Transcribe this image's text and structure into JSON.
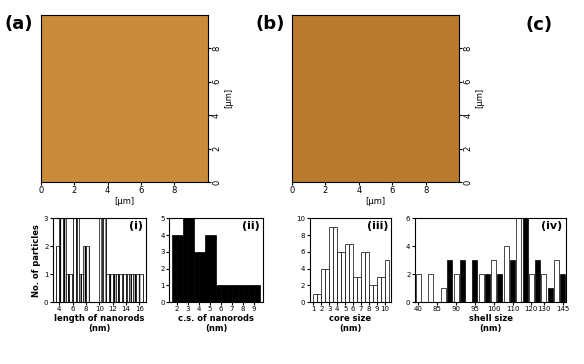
{
  "chart_data": [
    {
      "type": "image",
      "title": "(a)",
      "color": "#c98b3a",
      "xlabel": "[µm]",
      "ylabel": "[µm]",
      "xlim": [
        0,
        10
      ],
      "ylim": [
        0,
        10
      ],
      "xticks": [
        0,
        2,
        4,
        6,
        8
      ],
      "yticks": [
        0,
        2,
        4,
        6,
        8
      ]
    },
    {
      "type": "image",
      "title": "(b)",
      "color": "#b97a2e",
      "xlabel": "[µm]",
      "ylabel": "[µm]",
      "xlim": [
        0,
        10
      ],
      "ylim": [
        0,
        10
      ],
      "xticks": [
        0,
        2,
        4,
        6,
        8
      ],
      "yticks": [
        0,
        2,
        4,
        6,
        8
      ]
    },
    {
      "type": "text",
      "title": "(c)"
    },
    {
      "type": "histogram",
      "annotation": "(i)",
      "xlabel": "length of nanorods\n(nm)",
      "ylabel": "No. of particles",
      "color": "#ffffff",
      "bins": [
        3.5,
        4,
        4.5,
        5,
        5.5,
        6,
        6.5,
        7,
        7.5,
        8,
        8.5,
        9,
        9.5,
        10,
        10.5,
        11,
        11.5,
        12,
        12.5,
        13,
        13.5,
        14,
        14.5,
        15,
        15.5,
        16,
        16.5
      ],
      "counts": [
        2,
        3,
        3,
        1,
        1,
        3,
        3,
        1,
        2,
        2,
        0,
        0,
        0,
        3,
        3,
        1,
        1,
        1,
        1,
        1,
        1,
        1,
        1,
        1,
        1,
        1
      ],
      "xlim": [
        3,
        17
      ],
      "ylim": [
        0,
        3
      ],
      "xticks": [
        4,
        6,
        8,
        10,
        12,
        14,
        16
      ],
      "yticks": [
        0,
        1,
        2,
        3
      ]
    },
    {
      "type": "histogram",
      "annotation": "(ii)",
      "xlabel": "c.s. of nanorods\n(nm)",
      "color": "#000000",
      "bins": [
        1.5,
        2,
        2.5,
        3,
        3.5,
        4,
        4.5,
        5,
        5.5,
        6,
        6.5,
        7,
        7.5,
        8,
        8.5,
        9,
        9.5
      ],
      "counts": [
        4,
        4,
        5,
        5,
        3,
        3,
        4,
        4,
        1,
        1,
        1,
        1,
        1,
        1,
        1,
        1
      ],
      "xlim": [
        1.3,
        9.8
      ],
      "ylim": [
        0,
        5
      ],
      "xticks": [
        2,
        3,
        4,
        5,
        6,
        7,
        8,
        9
      ],
      "yticks": [
        0,
        1,
        2,
        3,
        4,
        5
      ]
    },
    {
      "type": "histogram",
      "annotation": "(iii)",
      "xlabel": "core size\n(nm)",
      "color": "#ffffff",
      "bins": [
        1,
        1.5,
        2,
        2.5,
        3,
        3.5,
        4,
        4.5,
        5,
        5.5,
        6,
        6.5,
        7,
        7.5,
        8,
        8.5,
        9,
        9.5,
        10,
        10.5
      ],
      "counts": [
        1,
        1,
        4,
        4,
        9,
        9,
        6,
        6,
        7,
        7,
        3,
        3,
        6,
        6,
        2,
        2,
        3,
        3,
        5
      ],
      "xlim": [
        0.5,
        10.8
      ],
      "ylim": [
        0,
        10
      ],
      "xticks": [
        1,
        2,
        3,
        4,
        5,
        6,
        7,
        8,
        9,
        10
      ],
      "yticks": [
        0,
        2,
        4,
        6,
        8,
        10
      ]
    },
    {
      "type": "bar",
      "annotation": "(iv)",
      "xlabel": "shell size\n(nm)",
      "categories": [
        "40",
        null,
        null,
        "85",
        null,
        null,
        "90",
        null,
        null,
        "95",
        null,
        null,
        "100",
        null,
        null,
        "110",
        null,
        null,
        "120",
        null,
        "130",
        null,
        null,
        "145"
      ],
      "values": [
        2,
        0,
        2,
        0,
        1,
        3,
        2,
        3,
        0,
        3,
        2,
        2,
        3,
        2,
        4,
        3,
        6,
        6,
        2,
        3,
        2,
        1,
        3,
        2
      ],
      "colors": [
        "#ffffff",
        "#000000",
        "#ffffff",
        "#000000",
        "#ffffff",
        "#000000",
        "#ffffff",
        "#000000",
        "#ffffff",
        "#000000",
        "#ffffff",
        "#000000",
        "#ffffff",
        "#000000",
        "#ffffff",
        "#000000",
        "#ffffff",
        "#000000",
        "#ffffff",
        "#000000",
        "#ffffff",
        "#000000",
        "#ffffff",
        "#000000"
      ],
      "ylim": [
        0,
        6
      ],
      "yticks": [
        0,
        2,
        4,
        6
      ]
    }
  ]
}
